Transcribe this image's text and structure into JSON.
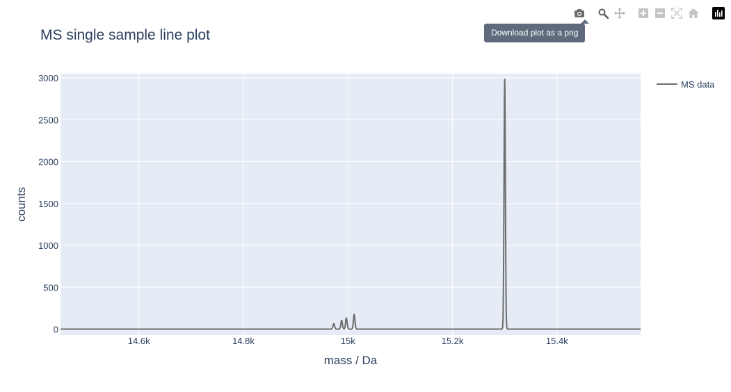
{
  "toolbar": {
    "tooltip": "Download plot as a png",
    "buttons": [
      {
        "name": "camera-icon",
        "active": true
      },
      {
        "name": "zoom-icon",
        "active": true
      },
      {
        "name": "pan-icon",
        "active": false
      },
      {
        "name": "zoom-in-icon",
        "active": false
      },
      {
        "name": "zoom-out-icon",
        "active": false
      },
      {
        "name": "autoscale-icon",
        "active": false
      },
      {
        "name": "reset-axes-icon",
        "active": false
      },
      {
        "name": "plotly-logo-icon",
        "active": true
      }
    ]
  },
  "chart_data": {
    "type": "line",
    "title": "MS single sample line plot",
    "xlabel": "mass / Da",
    "ylabel": "counts",
    "xlim": [
      14450,
      15560
    ],
    "ylim": [
      -70,
      3050
    ],
    "xticks": [
      14600,
      14800,
      15000,
      15200,
      15400
    ],
    "xtick_labels": [
      "14.6k",
      "14.8k",
      "15k",
      "15.2k",
      "15.4k"
    ],
    "yticks": [
      0,
      500,
      1000,
      1500,
      2000,
      2500,
      3000
    ],
    "ytick_labels": [
      "0",
      "500",
      "1000",
      "1500",
      "2000",
      "2500",
      "3000"
    ],
    "grid": true,
    "legend_position": "top-right",
    "series": [
      {
        "name": "MS data",
        "color": "#6e6e6e",
        "peaks": [
          {
            "mass": 14973,
            "height": 65,
            "width": 1.5
          },
          {
            "mass": 14988,
            "height": 105,
            "width": 1.5
          },
          {
            "mass": 14997,
            "height": 135,
            "width": 1.5
          },
          {
            "mass": 15012,
            "height": 175,
            "width": 1.5
          },
          {
            "mass": 15300,
            "height": 2985,
            "width": 1.3
          }
        ]
      }
    ],
    "colors": {
      "plot_bg": "#e5ecf6",
      "grid": "#ffffff",
      "text": "#2a3f5f"
    }
  }
}
